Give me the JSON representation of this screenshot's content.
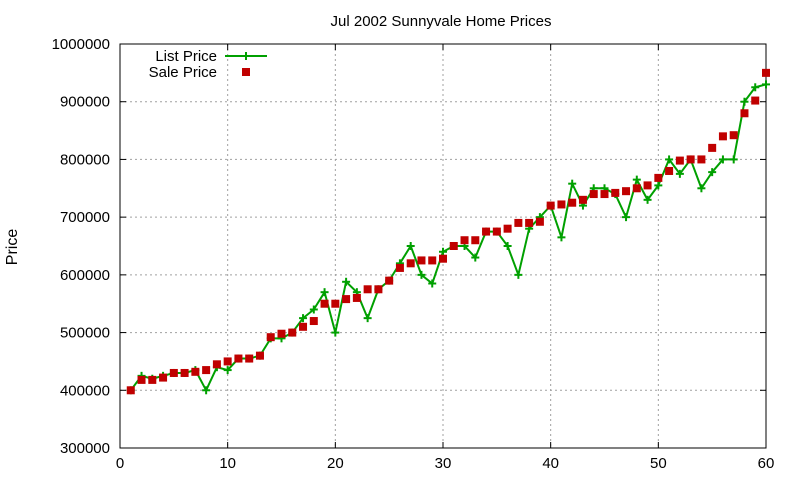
{
  "chart_data": {
    "type": "line",
    "title": "Jul 2002 Sunnyvale Home Prices",
    "xlabel": "",
    "ylabel": "Price",
    "xlim": [
      0,
      60
    ],
    "ylim": [
      300000,
      1000000
    ],
    "x_ticks": [
      0,
      10,
      20,
      30,
      40,
      50,
      60
    ],
    "y_ticks": [
      300000,
      400000,
      500000,
      600000,
      700000,
      800000,
      900000,
      1000000
    ],
    "x_tick_labels": [
      "0",
      "10",
      "20",
      "30",
      "40",
      "50",
      "60"
    ],
    "y_tick_labels": [
      "300000",
      "400000",
      "500000",
      "600000",
      "700000",
      "800000",
      "900000",
      "1000000"
    ],
    "grid": true,
    "legend_position": "top-left",
    "x": [
      1,
      2,
      3,
      4,
      5,
      6,
      7,
      8,
      9,
      10,
      11,
      12,
      13,
      14,
      15,
      16,
      17,
      18,
      19,
      20,
      21,
      22,
      23,
      24,
      25,
      26,
      27,
      28,
      29,
      30,
      31,
      32,
      33,
      34,
      35,
      36,
      37,
      38,
      39,
      40,
      41,
      42,
      43,
      44,
      45,
      46,
      47,
      48,
      49,
      50,
      51,
      52,
      53,
      54,
      55,
      56,
      57,
      58,
      59,
      60
    ],
    "series": [
      {
        "name": "List Price",
        "style": "line-plus",
        "color": "#00a000",
        "values": [
          400000,
          425000,
          420000,
          425000,
          430000,
          430000,
          435000,
          400000,
          440000,
          435000,
          455000,
          455000,
          460000,
          490000,
          490000,
          500000,
          525000,
          540000,
          570000,
          500000,
          588000,
          570000,
          525000,
          575000,
          590000,
          620000,
          650000,
          600000,
          585000,
          640000,
          650000,
          650000,
          630000,
          675000,
          675000,
          650000,
          600000,
          680000,
          700000,
          720000,
          665000,
          758000,
          720000,
          750000,
          750000,
          740000,
          700000,
          765000,
          730000,
          755000,
          800000,
          775000,
          800000,
          750000,
          778000,
          800000,
          800000,
          900000,
          925000,
          930000
        ]
      },
      {
        "name": "Sale Price",
        "style": "square-marker",
        "color": "#c00000",
        "values": [
          400000,
          418000,
          418000,
          422000,
          430000,
          430000,
          432000,
          435000,
          445000,
          450000,
          455000,
          455000,
          460000,
          492000,
          498000,
          500000,
          510000,
          520000,
          550000,
          550000,
          558000,
          560000,
          575000,
          575000,
          590000,
          612000,
          620000,
          625000,
          625000,
          628000,
          650000,
          660000,
          660000,
          675000,
          675000,
          680000,
          690000,
          690000,
          692000,
          720000,
          722000,
          725000,
          730000,
          740000,
          740000,
          742000,
          745000,
          750000,
          755000,
          768000,
          780000,
          798000,
          800000,
          800000,
          820000,
          840000,
          842000,
          880000,
          902000,
          950000
        ]
      }
    ]
  }
}
